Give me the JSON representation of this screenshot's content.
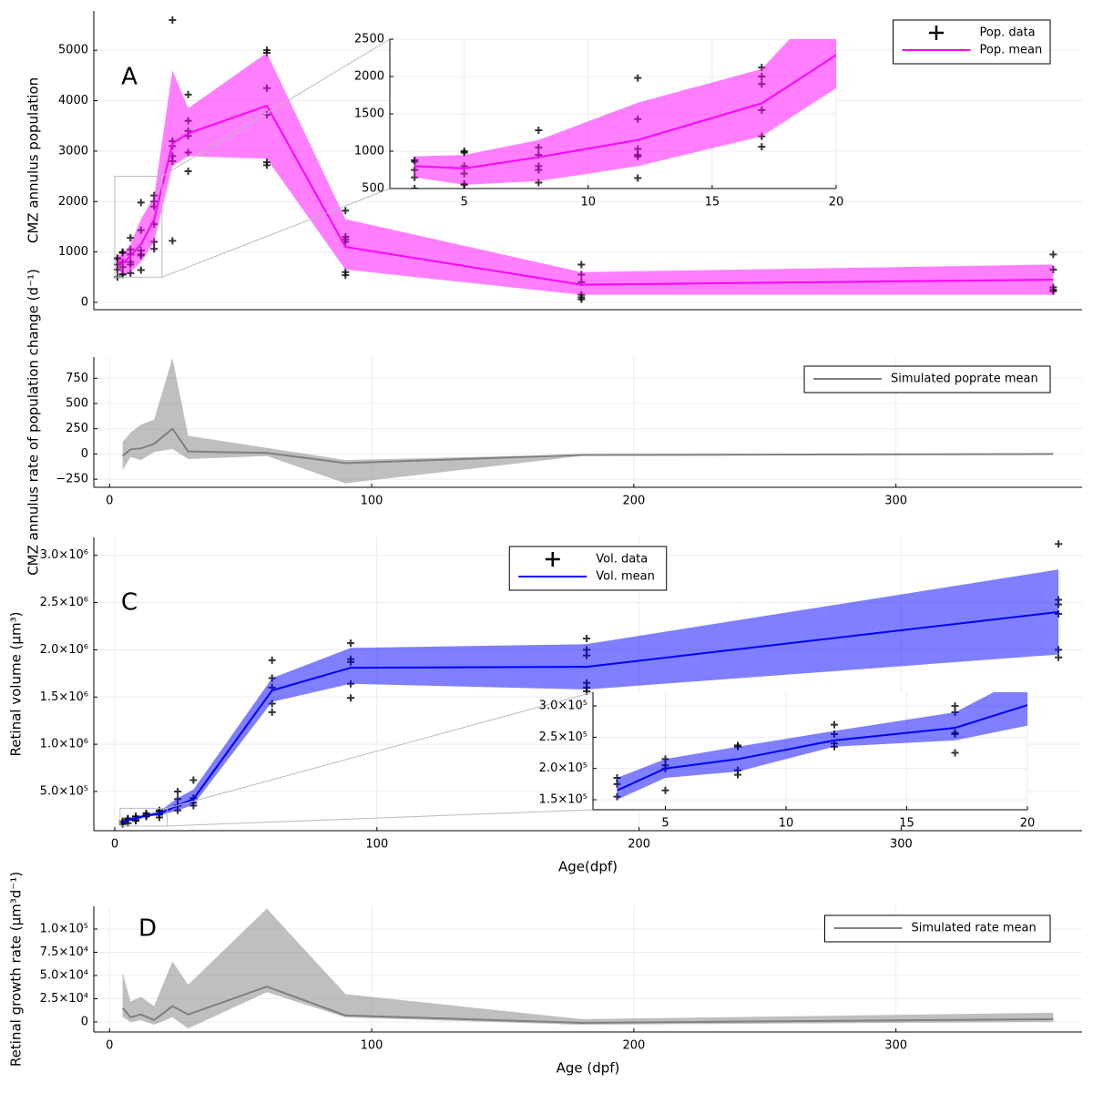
{
  "chart_data": [
    {
      "type": "line",
      "label": "A",
      "ylabel": "CMZ annulus population",
      "grid": true,
      "legend": "top-right",
      "xlim": [
        -6,
        371
      ],
      "ylim": [
        -145,
        5780
      ],
      "yticks": [
        0,
        1000,
        2000,
        3000,
        4000,
        5000
      ],
      "series": [
        {
          "name": "Pop. data",
          "kind": "scatter",
          "color": "#000000",
          "x": [
            3,
            3,
            3,
            3,
            3,
            5,
            5,
            5,
            5,
            5,
            5,
            8,
            8,
            8,
            8,
            8,
            8,
            12,
            12,
            12,
            12,
            12,
            12,
            17,
            17,
            17,
            17,
            17,
            17,
            24,
            24,
            24,
            24,
            24,
            24,
            30,
            30,
            30,
            30,
            30,
            30,
            60,
            60,
            60,
            60,
            60,
            60,
            90,
            90,
            90,
            90,
            90,
            90,
            180,
            180,
            180,
            180,
            180,
            180,
            360,
            360,
            360,
            360,
            360
          ],
          "values": [
            880,
            860,
            750,
            650,
            500,
            1000,
            980,
            800,
            700,
            560,
            550,
            1280,
            1050,
            950,
            800,
            750,
            580,
            1980,
            1430,
            1030,
            950,
            930,
            640,
            2120,
            2000,
            1900,
            1550,
            1200,
            1060,
            5600,
            3200,
            3100,
            2900,
            2800,
            1220,
            4120,
            3600,
            3400,
            3300,
            2970,
            2600,
            5000,
            4950,
            4250,
            3720,
            2780,
            2720,
            1820,
            1300,
            1250,
            1200,
            600,
            540,
            750,
            550,
            400,
            150,
            100,
            60,
            950,
            650,
            300,
            250,
            220
          ]
        },
        {
          "name": "Pop. mean",
          "color": "#ff00ff",
          "x": [
            3,
            5,
            8,
            12,
            17,
            24,
            30,
            60,
            90,
            180,
            360
          ],
          "values": [
            800,
            770,
            920,
            1150,
            1640,
            3150,
            3350,
            3900,
            1100,
            350,
            450
          ],
          "lower": [
            650,
            550,
            600,
            800,
            1200,
            2700,
            2900,
            2850,
            650,
            150,
            150
          ],
          "upper": [
            930,
            950,
            1150,
            1650,
            2100,
            4600,
            3850,
            4950,
            1650,
            600,
            750
          ]
        }
      ],
      "inset": {
        "xlim": [
          2,
          20
        ],
        "ylim": [
          500,
          2500
        ],
        "xticks": [
          5,
          10,
          15,
          20
        ],
        "yticks": [
          500,
          1000,
          1500,
          2000,
          2500
        ]
      }
    },
    {
      "type": "line",
      "ylabel": "CMZ annulus rate of population change (d⁻¹)",
      "grid": true,
      "legend": "top-right",
      "xlim": [
        -6,
        371
      ],
      "ylim": [
        -330,
        960
      ],
      "xticks": [
        0,
        100,
        200,
        300
      ],
      "yticks": [
        {
          "value": -250,
          "label": "−250"
        },
        0,
        250,
        500,
        750
      ],
      "series": [
        {
          "name": "Simulated poprate mean",
          "color": "#808080",
          "x": [
            5,
            8,
            12,
            17,
            24,
            30,
            60,
            90,
            180,
            360
          ],
          "values": [
            -20,
            45,
            55,
            100,
            250,
            25,
            10,
            -90,
            -10,
            0
          ],
          "lower": [
            -160,
            -30,
            -60,
            20,
            50,
            -50,
            -20,
            -290,
            -20,
            -5
          ],
          "upper": [
            120,
            210,
            290,
            340,
            950,
            180,
            60,
            -60,
            -5,
            5
          ]
        }
      ]
    },
    {
      "type": "line",
      "label": "C",
      "ylabel": "Retinal volume (µm³)",
      "xlabel": "Age(dpf)",
      "grid": true,
      "legend": "top",
      "xlim": [
        -8,
        369
      ],
      "ylim": [
        85000,
        3190000
      ],
      "xticks": [
        0,
        100,
        200,
        300
      ],
      "yticks": [
        {
          "value": 500000,
          "label": "5.0×10⁵"
        },
        {
          "value": 1000000,
          "label": "1.0×10⁶"
        },
        {
          "value": 1500000,
          "label": "1.5×10⁶"
        },
        {
          "value": 2000000,
          "label": "2.0×10⁶"
        },
        {
          "value": 2500000,
          "label": "2.5×10⁶"
        },
        {
          "value": 3000000,
          "label": "3.0×10⁶"
        }
      ],
      "series": [
        {
          "name": "Vol. data",
          "kind": "scatter",
          "color": "#000000",
          "x": [
            3,
            3,
            3,
            5,
            5,
            5,
            5,
            8,
            8,
            8,
            8,
            12,
            12,
            12,
            12,
            17,
            17,
            17,
            17,
            17,
            24,
            24,
            24,
            24,
            30,
            30,
            30,
            30,
            60,
            60,
            60,
            60,
            60,
            90,
            90,
            90,
            90,
            90,
            180,
            180,
            180,
            180,
            180,
            180,
            360,
            360,
            360,
            360,
            360,
            360
          ],
          "values": [
            185000,
            175000,
            155000,
            215000,
            205000,
            200000,
            165000,
            237000,
            235000,
            197000,
            190000,
            270000,
            255000,
            240000,
            235000,
            300000,
            290000,
            257000,
            255000,
            225000,
            500000,
            420000,
            350000,
            300000,
            620000,
            430000,
            380000,
            350000,
            1890000,
            1700000,
            1600000,
            1430000,
            1340000,
            2070000,
            1900000,
            1870000,
            1640000,
            1490000,
            2120000,
            2000000,
            1940000,
            1650000,
            1600000,
            1560000,
            3120000,
            2530000,
            2480000,
            2380000,
            2000000,
            1920000
          ]
        },
        {
          "name": "Vol. mean",
          "color": "#0000ff",
          "x": [
            3,
            5,
            8,
            12,
            17,
            24,
            30,
            60,
            90,
            180,
            360
          ],
          "values": [
            165000,
            200000,
            215000,
            245000,
            265000,
            350000,
            420000,
            1570000,
            1810000,
            1820000,
            2400000
          ],
          "lower": [
            150000,
            185000,
            195000,
            235000,
            245000,
            300000,
            360000,
            1450000,
            1640000,
            1580000,
            1950000
          ],
          "upper": [
            185000,
            215000,
            235000,
            260000,
            290000,
            430000,
            520000,
            1700000,
            2020000,
            2060000,
            2850000
          ]
        }
      ],
      "inset": {
        "xlim": [
          2,
          20
        ],
        "ylim": [
          134000,
          322000
        ],
        "xticks": [
          5,
          10,
          15,
          20
        ],
        "yticks": [
          {
            "value": 150000,
            "label": "1.5×10⁵"
          },
          {
            "value": 200000,
            "label": "2.0×10⁵"
          },
          {
            "value": 250000,
            "label": "2.5×10⁵"
          },
          {
            "value": 300000,
            "label": "3.0×10⁵"
          }
        ]
      }
    },
    {
      "type": "line",
      "label": "D",
      "ylabel": "Retinal growth rate (µm³d⁻¹)",
      "xlabel": "Age (dpf)",
      "grid": true,
      "legend": "top-right",
      "xlim": [
        -6,
        371
      ],
      "ylim": [
        -10800,
        124500
      ],
      "xticks": [
        0,
        100,
        200,
        300
      ],
      "yticks": [
        0,
        {
          "value": 25000,
          "label": "2.5×10⁴"
        },
        {
          "value": 50000,
          "label": "5.0×10⁴"
        },
        {
          "value": 75000,
          "label": "7.5×10⁴"
        },
        {
          "value": 100000,
          "label": "1.0×10⁵"
        }
      ],
      "series": [
        {
          "name": "Simulated rate mean",
          "color": "#808080",
          "x": [
            5,
            8,
            12,
            17,
            24,
            30,
            60,
            90,
            180,
            360
          ],
          "values": [
            15000,
            5000,
            8000,
            2000,
            17000,
            8000,
            38000,
            7000,
            -1000,
            3000
          ],
          "lower": [
            5000,
            0,
            2000,
            -3000,
            5000,
            -7000,
            32000,
            5000,
            -3000,
            0
          ],
          "upper": [
            53000,
            22000,
            27000,
            17000,
            65000,
            40000,
            122000,
            30000,
            3000,
            10000
          ]
        }
      ]
    }
  ]
}
